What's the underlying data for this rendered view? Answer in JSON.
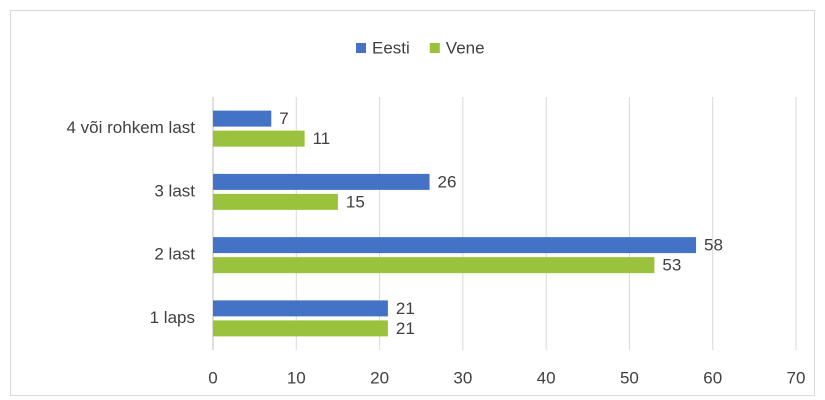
{
  "chart_data": {
    "type": "bar",
    "orientation": "horizontal",
    "categories": [
      "1 laps",
      "2 last",
      "3 last",
      "4 või rohkem last"
    ],
    "series": [
      {
        "name": "Eesti",
        "color": "#4472c4",
        "values": [
          21,
          58,
          26,
          7
        ]
      },
      {
        "name": "Vene",
        "color": "#9bc23c",
        "values": [
          21,
          53,
          15,
          11
        ]
      }
    ],
    "xlim": [
      0,
      70
    ],
    "xticks": [
      0,
      10,
      20,
      30,
      40,
      50,
      60,
      70
    ],
    "grid": true,
    "legend": "top"
  }
}
